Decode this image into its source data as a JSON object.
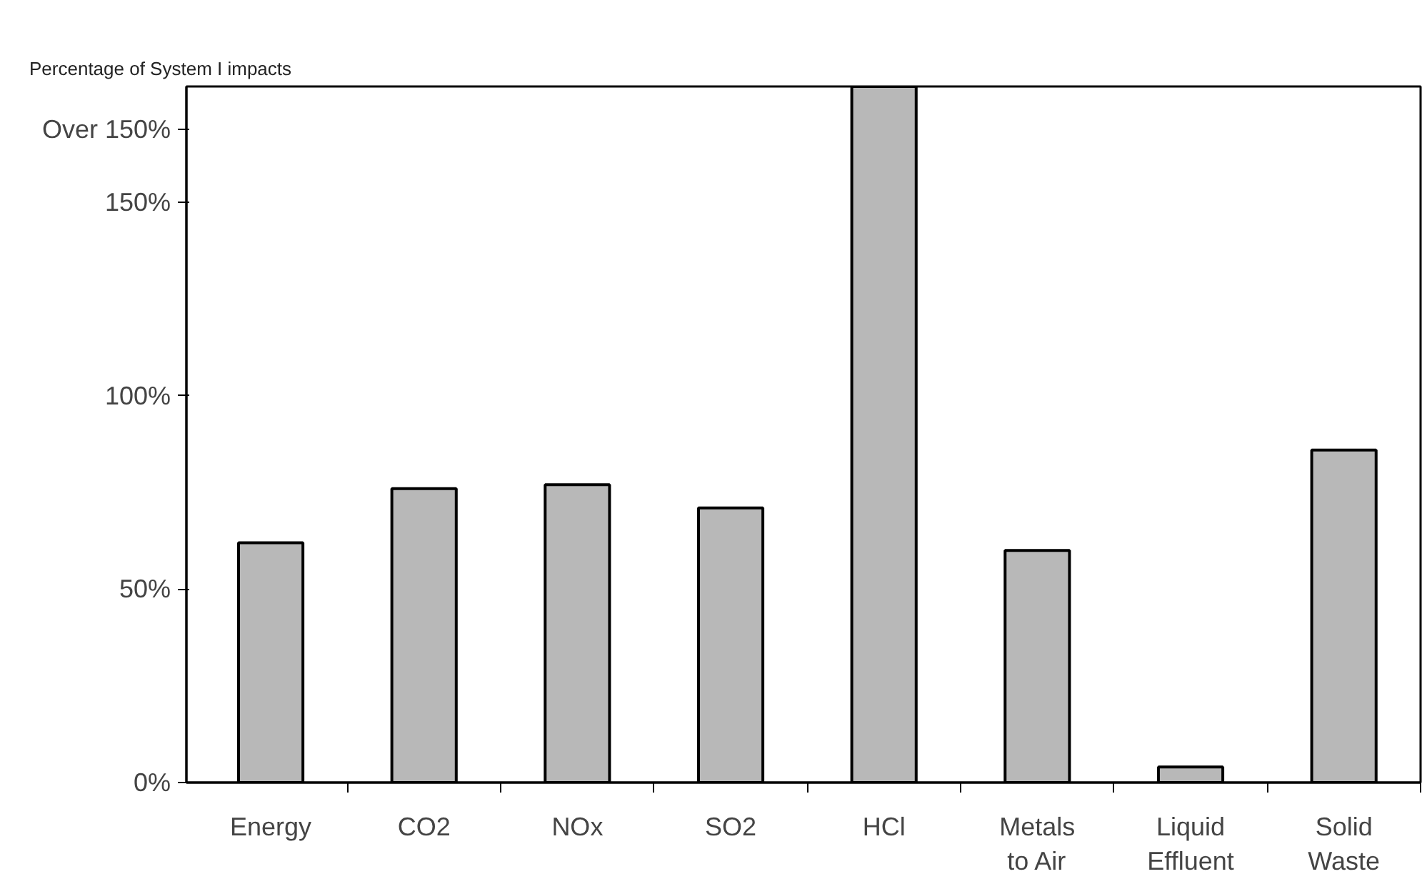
{
  "chart_data": {
    "type": "bar",
    "title": "Percentage of System I impacts",
    "categories": [
      "Energy",
      "CO2",
      "NOx",
      "SO2",
      "HCl",
      "Metals\nto Air",
      "Liquid\nEffluent",
      "Solid\nWaste"
    ],
    "values": [
      62,
      76,
      77,
      71,
      180,
      60,
      4,
      86
    ],
    "color": "#b8b8b8",
    "ylim": [
      0,
      180
    ],
    "yticks": [
      {
        "value": 0,
        "label": "0%"
      },
      {
        "value": 50,
        "label": "50%"
      },
      {
        "value": 100,
        "label": "100%"
      },
      {
        "value": 150,
        "label": "150%"
      },
      {
        "value": 169,
        "label": "Over 150%"
      }
    ],
    "grid": false
  }
}
